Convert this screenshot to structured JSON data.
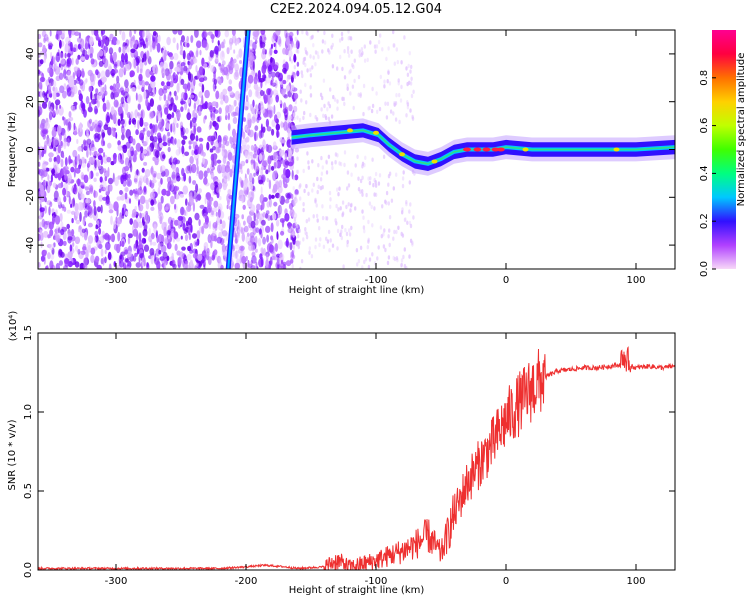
{
  "title": "C2E2.2024.094.05.12.G04",
  "chart_data": [
    {
      "type": "heatmap",
      "title": "C2E2.2024.094.05.12.G04",
      "xlabel": "Height of straight line (km)",
      "ylabel": "Frequency (Hz)",
      "xlim": [
        -360,
        130
      ],
      "ylim": [
        -50,
        50
      ],
      "xticks": [
        -300,
        -200,
        -100,
        0,
        100
      ],
      "yticks": [
        -40,
        -20,
        0,
        20,
        40
      ],
      "signal_track": [
        {
          "x": -165,
          "y": 5
        },
        {
          "x": -150,
          "y": 6
        },
        {
          "x": -130,
          "y": 7
        },
        {
          "x": -110,
          "y": 8
        },
        {
          "x": -98,
          "y": 6
        },
        {
          "x": -90,
          "y": 2
        },
        {
          "x": -80,
          "y": -2
        },
        {
          "x": -70,
          "y": -5
        },
        {
          "x": -60,
          "y": -6
        },
        {
          "x": -50,
          "y": -4
        },
        {
          "x": -40,
          "y": -1
        },
        {
          "x": -30,
          "y": 0
        },
        {
          "x": -20,
          "y": 0
        },
        {
          "x": -10,
          "y": 0
        },
        {
          "x": 0,
          "y": 1
        },
        {
          "x": 20,
          "y": 0
        },
        {
          "x": 60,
          "y": 0
        },
        {
          "x": 100,
          "y": 0
        },
        {
          "x": 130,
          "y": 1
        }
      ],
      "colorbar": {
        "label": "Normalized spectral amplitude",
        "ticks": [
          "0.0",
          "0.2",
          "0.4",
          "0.6",
          "0.8"
        ],
        "range": [
          0,
          1
        ],
        "colors": [
          "#f8d8f8",
          "#b040ff",
          "#3010ff",
          "#00c8ff",
          "#00ff80",
          "#40ff00",
          "#c0ff00",
          "#ffd000",
          "#ff7000",
          "#ff0040",
          "#ff0090"
        ]
      }
    },
    {
      "type": "line",
      "xlabel": "Height of straight line (km)",
      "ylabel": "SNR (10 * v/v)",
      "yscale_note": "(x10⁴)",
      "xlim": [
        -360,
        130
      ],
      "ylim": [
        0,
        1.5
      ],
      "xticks": [
        -300,
        -200,
        -100,
        0,
        100
      ],
      "yticks": [
        "0.0",
        "0.5",
        "1.0",
        "1.5"
      ],
      "color": "#ee3030",
      "series": [
        {
          "x": [
            -360,
            -300,
            -250,
            -220,
            -200,
            -185,
            -170,
            -160,
            -140,
            -130,
            -120,
            -110,
            -100,
            -90,
            -80,
            -70,
            -60,
            -50,
            -40,
            -30,
            -20,
            -10,
            0,
            10,
            20,
            30,
            40,
            50,
            60,
            70,
            80,
            90,
            100,
            110,
            120,
            130
          ],
          "values": [
            0.01,
            0.01,
            0.01,
            0.01,
            0.02,
            0.03,
            0.02,
            0.01,
            0.02,
            0.06,
            0.02,
            0.04,
            0.06,
            0.09,
            0.12,
            0.16,
            0.22,
            0.1,
            0.35,
            0.55,
            0.68,
            0.8,
            0.95,
            1.05,
            1.15,
            1.22,
            1.26,
            1.27,
            1.28,
            1.28,
            1.29,
            1.3,
            1.28,
            1.29,
            1.28,
            1.29
          ]
        }
      ]
    }
  ]
}
